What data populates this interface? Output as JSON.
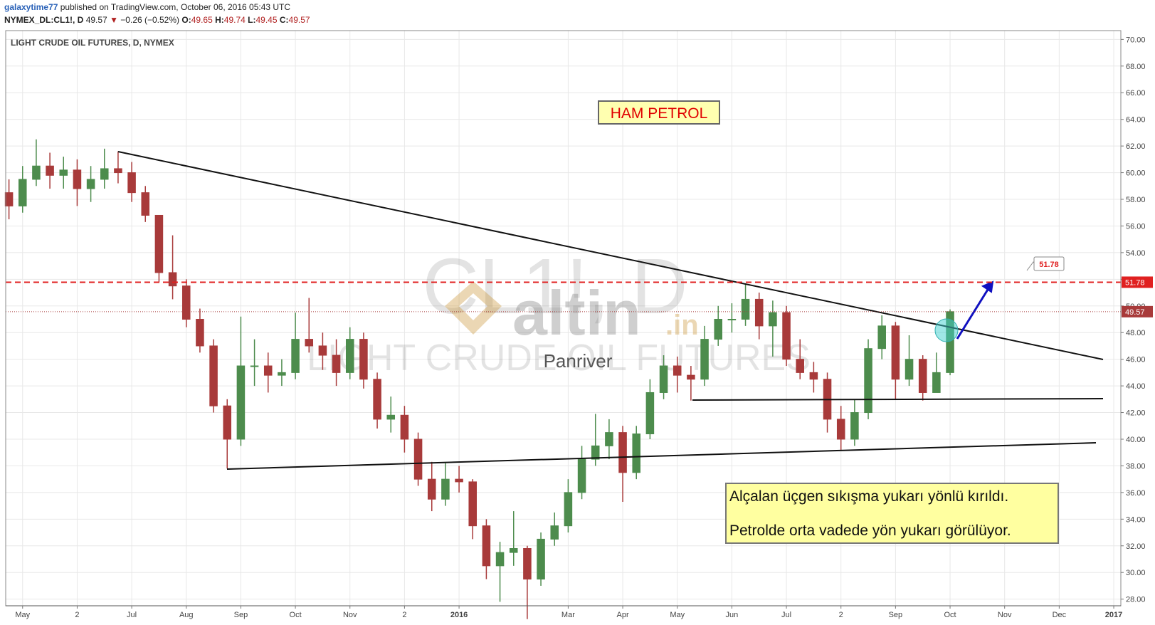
{
  "header": {
    "user": "galaxytime77",
    "published": "published on TradingView.com, October 06, 2016 05:43 UTC",
    "symbol": "NYMEX_DL:CL1!, D",
    "price": "49.57",
    "arrow": "▼",
    "change": "−0.26 (−0.52%)",
    "open_label": "O:",
    "open": "49.65",
    "high_label": "H:",
    "high": "49.74",
    "low_label": "L:",
    "low": "49.45",
    "close_label": "C:",
    "close": "49.57"
  },
  "chart_data": {
    "type": "candlestick",
    "title": "LIGHT CRUDE OIL FUTURES, D, NYMEX",
    "x": [
      -0.25,
      0,
      0.25,
      0.5,
      0.75,
      1,
      1.25,
      1.5,
      1.75,
      2,
      2.25,
      2.5,
      2.75,
      3,
      3.25,
      3.5,
      3.75,
      4,
      4.25,
      4.5,
      4.75,
      5,
      5.25,
      5.5,
      5.75,
      6,
      6.25,
      6.5,
      6.75,
      7,
      7.25,
      7.5,
      7.75,
      8,
      8.25,
      8.5,
      8.75,
      9,
      9.25,
      9.5,
      9.75,
      10,
      10.25,
      10.5,
      10.75,
      11,
      11.25,
      11.5,
      11.75,
      12,
      12.25,
      12.5,
      12.75,
      13,
      13.25,
      13.5,
      13.75,
      14,
      14.25,
      14.5,
      14.75,
      15,
      15.25,
      15.5,
      15.75,
      16,
      16.25,
      16.5,
      16.75,
      17
    ],
    "open": [
      58.5,
      57.5,
      59.5,
      60.5,
      59.8,
      60.2,
      58.8,
      59.5,
      60.3,
      60.0,
      58.5,
      56.8,
      52.5,
      51.5,
      49,
      47,
      42.5,
      40,
      45.5,
      45.5,
      44.8,
      45,
      47.5,
      47,
      46.3,
      45,
      47.5,
      44.5,
      41.5,
      41.8,
      40,
      37,
      35.5,
      37,
      36.8,
      33.5,
      30.5,
      31.5,
      31.8,
      29.5,
      32.5,
      33.5,
      36,
      38.5,
      39.5,
      40.5,
      37.5,
      40.4,
      43.5,
      45.5,
      44.8,
      44.5,
      47.5,
      49,
      49,
      50.5,
      48.5,
      49.5,
      46,
      45,
      44.5,
      41.5,
      40,
      42,
      46.8,
      48.5,
      44.5,
      46,
      43.5,
      45
    ],
    "high": [
      59.5,
      60.5,
      62.5,
      61.5,
      61.2,
      61,
      60.5,
      61.8,
      61.6,
      60.8,
      59,
      56.8,
      55.3,
      52,
      49.8,
      47.5,
      43,
      49.2,
      47.5,
      46.5,
      46,
      49.5,
      50.6,
      48,
      47.5,
      48.4,
      48,
      45,
      43.2,
      42.5,
      40.5,
      38.3,
      38.2,
      38,
      37,
      34,
      32.3,
      34.6,
      32,
      33,
      34.5,
      37,
      39.5,
      41.9,
      41.5,
      41,
      41,
      44.5,
      46.3,
      46.2,
      45.5,
      48.5,
      50,
      50.2,
      51.7,
      51,
      50.4,
      50,
      47.5,
      45.8,
      45,
      42.5,
      43,
      47.5,
      49.3,
      48.8,
      47.8,
      46.3,
      46.5,
      49.74
    ],
    "low": [
      56.5,
      57,
      59,
      58.8,
      58.8,
      57.5,
      57.8,
      58.8,
      59.2,
      57.8,
      56.3,
      51.8,
      50.5,
      48.4,
      46.5,
      42,
      37.8,
      39.5,
      44,
      43.5,
      44,
      44.5,
      46.5,
      45.2,
      44,
      44.5,
      43.8,
      40.8,
      40.5,
      39,
      36.5,
      34.6,
      35,
      36,
      32.5,
      29.5,
      27.8,
      30.5,
      26.5,
      29,
      32,
      33,
      35.5,
      38,
      38.5,
      35.3,
      37,
      40,
      43,
      43.5,
      42.9,
      44,
      47,
      48,
      48.5,
      47.5,
      46.2,
      45.5,
      44.5,
      43.5,
      40.5,
      39.2,
      39.5,
      41.5,
      46,
      43,
      44,
      42.9,
      43.5,
      44.8
    ],
    "close": [
      57.5,
      59.5,
      60.5,
      59.8,
      60.2,
      58.8,
      59.5,
      60.3,
      60.0,
      58.5,
      56.8,
      52.5,
      51.5,
      49,
      47,
      42.5,
      40,
      45.5,
      45.5,
      44.8,
      45,
      47.5,
      47,
      46.3,
      45,
      47.5,
      44.5,
      41.5,
      41.8,
      40,
      37,
      35.5,
      37,
      36.8,
      33.5,
      30.5,
      31.5,
      31.8,
      29.5,
      32.5,
      33.5,
      36,
      38.5,
      39.5,
      40.5,
      37.5,
      40.4,
      43.5,
      45.5,
      44.8,
      44.5,
      47.5,
      49,
      49,
      50.5,
      48.5,
      49.5,
      46,
      45,
      44.5,
      41.5,
      40,
      42,
      46.8,
      48.5,
      44.5,
      46,
      43.5,
      45,
      49.57
    ],
    "up_color": "#4d8c4d",
    "down_color": "#a83a3a",
    "xlim": [
      -0.31,
      20.13
    ],
    "xticks": [
      {
        "value": 0,
        "label": "May"
      },
      {
        "value": 1,
        "label": "2"
      },
      {
        "value": 2,
        "label": "Jul"
      },
      {
        "value": 3,
        "label": "Aug"
      },
      {
        "value": 4,
        "label": "Sep"
      },
      {
        "value": 5,
        "label": "Oct"
      },
      {
        "value": 6,
        "label": "Nov"
      },
      {
        "value": 7,
        "label": "2"
      },
      {
        "value": 8,
        "label": "2016"
      },
      {
        "value": 10,
        "label": "Mar"
      },
      {
        "value": 11,
        "label": "Apr"
      },
      {
        "value": 12,
        "label": "May"
      },
      {
        "value": 13,
        "label": "Jun"
      },
      {
        "value": 14,
        "label": "Jul"
      },
      {
        "value": 15,
        "label": "2"
      },
      {
        "value": 16,
        "label": "Sep"
      },
      {
        "value": 17,
        "label": "Oct"
      },
      {
        "value": 18,
        "label": "Nov"
      },
      {
        "value": 19,
        "label": "Dec"
      },
      {
        "value": 20,
        "label": "2017"
      }
    ],
    "ylim": [
      27.5,
      70.66
    ],
    "yticks": [
      {
        "value": 28,
        "label": "28.00"
      },
      {
        "value": 30,
        "label": "30.00"
      },
      {
        "value": 32,
        "label": "32.00"
      },
      {
        "value": 34,
        "label": "34.00"
      },
      {
        "value": 36,
        "label": "36.00"
      },
      {
        "value": 38,
        "label": "38.00"
      },
      {
        "value": 40,
        "label": "40.00"
      },
      {
        "value": 42,
        "label": "42.00"
      },
      {
        "value": 44,
        "label": "44.00"
      },
      {
        "value": 46,
        "label": "46.00"
      },
      {
        "value": 48,
        "label": "48.00"
      },
      {
        "value": 50,
        "label": "50.00"
      },
      {
        "value": 52,
        "label": "52.00"
      },
      {
        "value": 54,
        "label": "54.00"
      },
      {
        "value": 56,
        "label": "56.00"
      },
      {
        "value": 58,
        "label": "58.00"
      },
      {
        "value": 60,
        "label": "60.00"
      },
      {
        "value": 62,
        "label": "62.00"
      },
      {
        "value": 64,
        "label": "64.00"
      },
      {
        "value": 66,
        "label": "66.00"
      },
      {
        "value": 68,
        "label": "68.00"
      },
      {
        "value": 70,
        "label": "70.00"
      }
    ],
    "grid": true,
    "alert_level": 51.78,
    "alert_color": "#e02020",
    "last_price": 49.57,
    "annotations": {
      "box_title": "HAM  PETROL",
      "note_1": "Alçalan üçgen sıkışma yukarı yönlü kırıldı.",
      "note_2": "Petrolde orta vadede yön yukarı görülüyor.",
      "watermark_symbol": "CL1!, D",
      "watermark_name": "LIGHT CRUDE OIL FUTURES",
      "logo": "altin",
      "logo_suffix": ".in",
      "author": "Panriver"
    }
  }
}
